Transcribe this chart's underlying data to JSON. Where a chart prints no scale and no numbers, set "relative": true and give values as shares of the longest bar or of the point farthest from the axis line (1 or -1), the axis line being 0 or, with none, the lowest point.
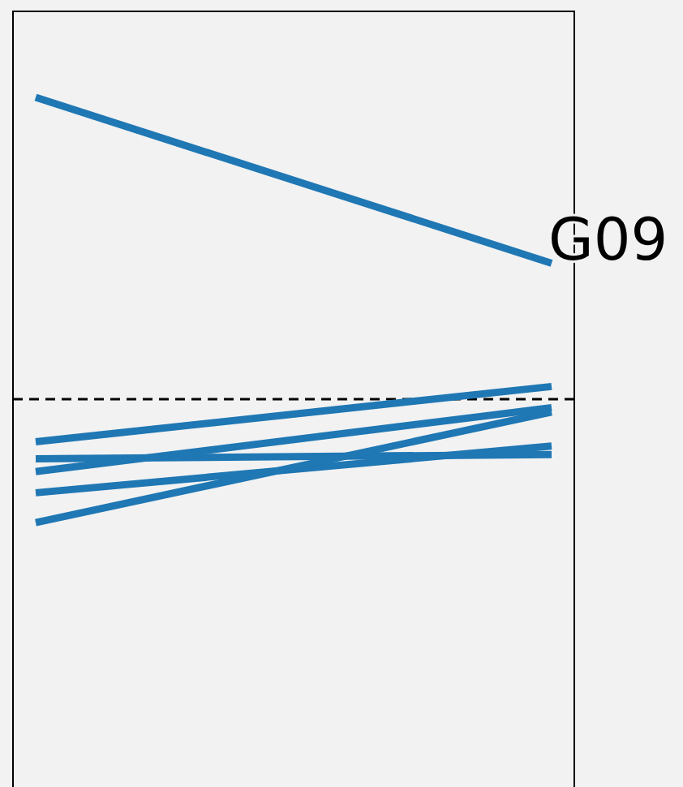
{
  "chart_data": {
    "type": "line",
    "relative": true,
    "categories": [
      null,
      null
    ],
    "legend": false,
    "series": [
      {
        "name": "G09",
        "color": "#1f77b4",
        "values": [
          1,
          0.61
        ]
      },
      {
        "color": "#1f77b4",
        "values": [
          0.19,
          0.32
        ]
      },
      {
        "color": "#1f77b4",
        "values": [
          0.15,
          0.16
        ]
      },
      {
        "color": "#1f77b4",
        "values": [
          0.12,
          0.27
        ]
      },
      {
        "color": "#1f77b4",
        "values": [
          0.07,
          0.18
        ]
      },
      {
        "color": "#1f77b4",
        "values": [
          0,
          0.26
        ]
      }
    ],
    "ref_lines": [
      {
        "axis": "y",
        "value": 0.29,
        "color": "#000000",
        "line_style": "dashed"
      }
    ]
  }
}
